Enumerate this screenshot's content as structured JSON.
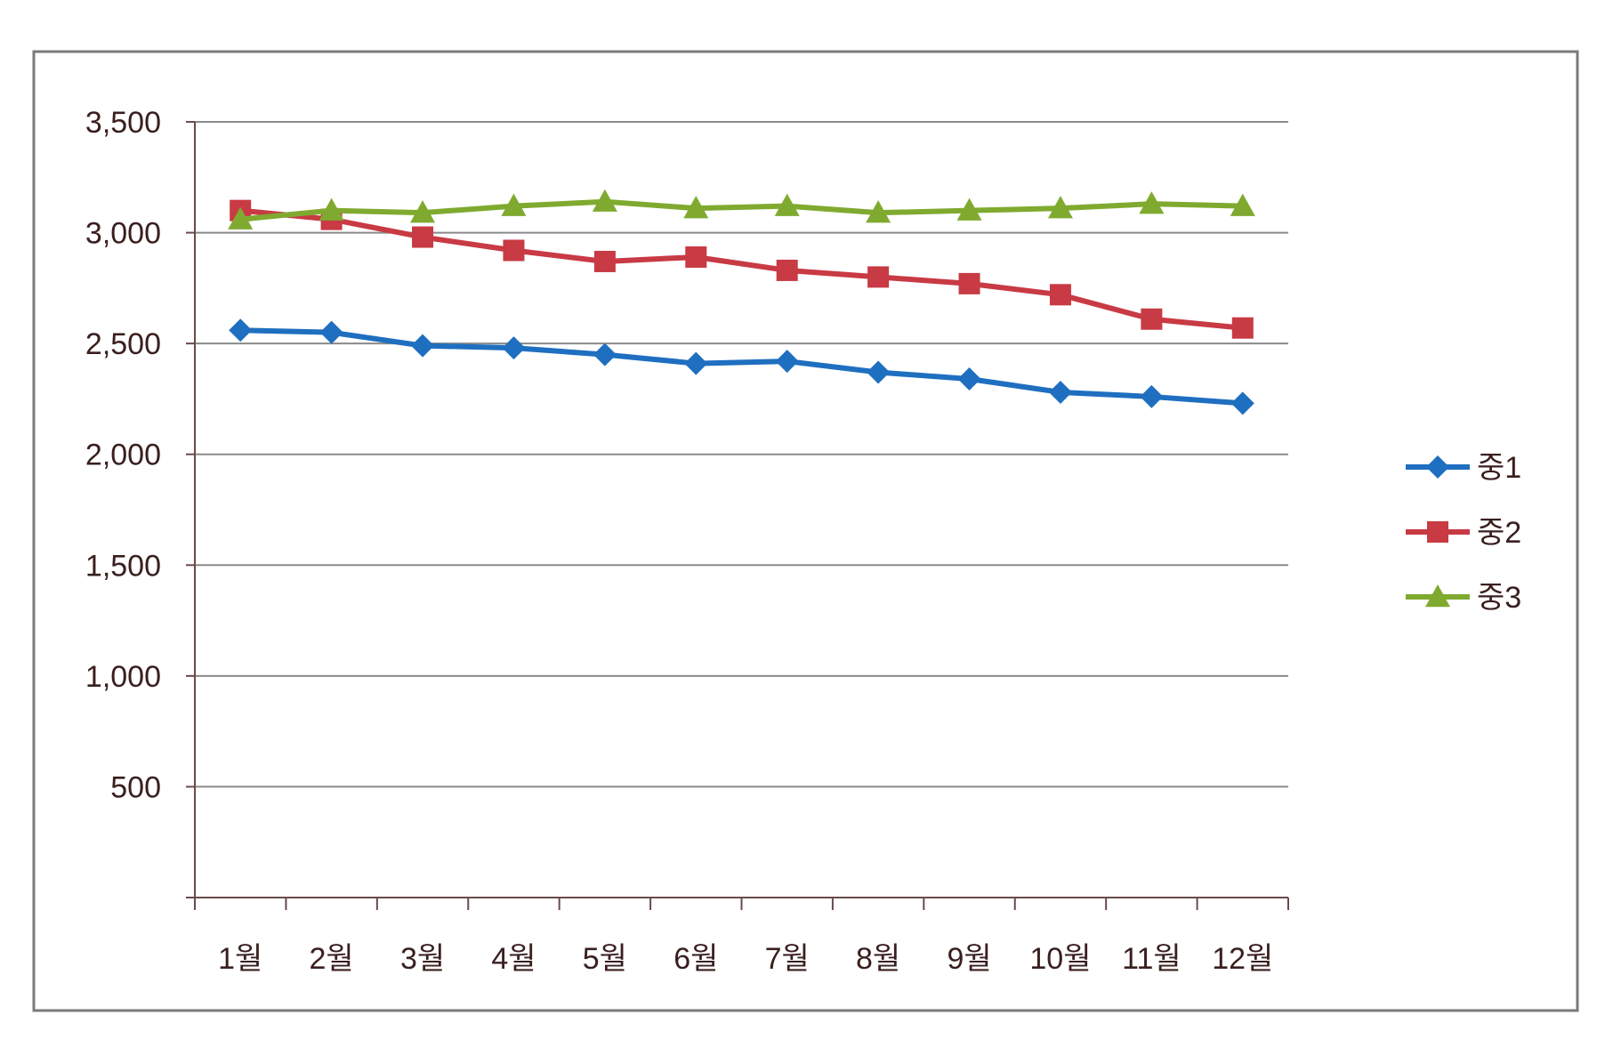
{
  "chart_data": {
    "type": "line",
    "title": "",
    "xlabel": "",
    "ylabel": "",
    "categories": [
      "1월",
      "2월",
      "3월",
      "4월",
      "5월",
      "6월",
      "7월",
      "8월",
      "9월",
      "10월",
      "11월",
      "12월"
    ],
    "ylim": [
      0,
      3500
    ],
    "yticks": [
      {
        "value": 500,
        "label": "500"
      },
      {
        "value": 1000,
        "label": "1,000"
      },
      {
        "value": 1500,
        "label": "1,500"
      },
      {
        "value": 2000,
        "label": "2,000"
      },
      {
        "value": 2500,
        "label": "2,500"
      },
      {
        "value": 3000,
        "label": "3,000"
      },
      {
        "value": 3500,
        "label": "3,500"
      }
    ],
    "grid": "horizontal",
    "legend_position": "right",
    "series": [
      {
        "name": "중1",
        "color": "#1f6fc0",
        "marker": "diamond",
        "values": [
          2560,
          2550,
          2490,
          2480,
          2450,
          2410,
          2420,
          2370,
          2340,
          2280,
          2260,
          2230
        ]
      },
      {
        "name": "중2",
        "color": "#c83a44",
        "marker": "square",
        "values": [
          3100,
          3060,
          2980,
          2920,
          2870,
          2890,
          2830,
          2800,
          2770,
          2720,
          2610,
          2570
        ]
      },
      {
        "name": "중3",
        "color": "#7faa2f",
        "marker": "triangle",
        "values": [
          3060,
          3100,
          3090,
          3120,
          3140,
          3110,
          3120,
          3090,
          3100,
          3110,
          3130,
          3120
        ]
      }
    ]
  },
  "colors": {
    "frame": "#7a7a7a",
    "axis": "#6b4a4a",
    "gridline": "#8a8a8a",
    "text": "#3a1f1f"
  }
}
